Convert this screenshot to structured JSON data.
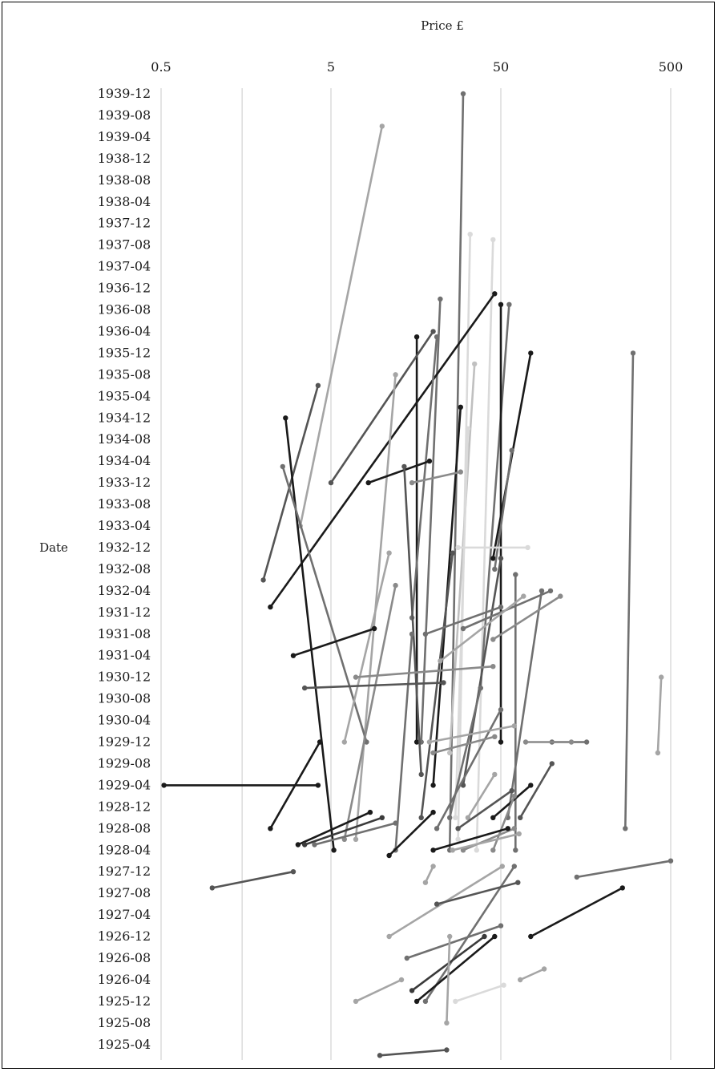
{
  "chart_data": {
    "type": "line",
    "xlabel": "Price £",
    "ylabel": "Date",
    "x_scale": "log",
    "xlim": [
      0.5,
      600
    ],
    "x_ticks": [
      "0.5",
      "5",
      "50",
      "500"
    ],
    "x_gridlines": [
      0.5,
      1.5,
      5,
      50,
      500
    ],
    "y_ticks": [
      "1939-12",
      "1939-08",
      "1939-04",
      "1938-12",
      "1938-08",
      "1938-04",
      "1937-12",
      "1937-08",
      "1937-04",
      "1936-12",
      "1936-08",
      "1936-04",
      "1935-12",
      "1935-08",
      "1935-04",
      "1934-12",
      "1934-08",
      "1934-04",
      "1933-12",
      "1933-08",
      "1933-04",
      "1932-12",
      "1932-08",
      "1932-04",
      "1931-12",
      "1931-08",
      "1931-04",
      "1930-12",
      "1930-08",
      "1930-04",
      "1929-12",
      "1929-08",
      "1929-04",
      "1928-12",
      "1928-08",
      "1928-04",
      "1927-12",
      "1927-08",
      "1927-04",
      "1926-12",
      "1926-08",
      "1926-04",
      "1925-12",
      "1925-08",
      "1925-04"
    ],
    "ylim": [
      "1925-02",
      "1939-12"
    ],
    "grid": "vertical",
    "legend": "none",
    "colors": [
      "#1a1a1a",
      "#3a3a3a",
      "#555555",
      "#707070",
      "#8a8a8a",
      "#a5a5a5",
      "#c0c0c0",
      "#dadada"
    ],
    "series": [
      {
        "points": [
          [
            "1939-12",
            30
          ],
          [
            "1928-04",
            25
          ]
        ],
        "color": "#707070"
      },
      {
        "points": [
          [
            "1939-06",
            10
          ],
          [
            "1933-04",
            3.3
          ]
        ],
        "color": "#a5a5a5"
      },
      {
        "points": [
          [
            "1937-10",
            33
          ],
          [
            "1928-06",
            28
          ]
        ],
        "color": "#dadada"
      },
      {
        "points": [
          [
            "1937-09",
            45
          ],
          [
            "1928-04",
            36
          ]
        ],
        "color": "#dadada"
      },
      {
        "points": [
          [
            "1936-10",
            22
          ],
          [
            "1929-12",
            17
          ]
        ],
        "color": "#707070"
      },
      {
        "points": [
          [
            "1936-11",
            46
          ],
          [
            "1932-01",
            2.2
          ]
        ],
        "color": "#1a1a1a"
      },
      {
        "points": [
          [
            "1936-09",
            56
          ],
          [
            "1930-10",
            38
          ]
        ],
        "color": "#707070"
      },
      {
        "points": [
          [
            "1936-09",
            50
          ],
          [
            "1929-12",
            50
          ]
        ],
        "color": "#1a1a1a"
      },
      {
        "points": [
          [
            "1936-03",
            16
          ],
          [
            "1929-12",
            16
          ]
        ],
        "color": "#1a1a1a"
      },
      {
        "points": [
          [
            "1936-04",
            20
          ],
          [
            "1933-12",
            5
          ]
        ],
        "color": "#555555"
      },
      {
        "points": [
          [
            "1936-03",
            21
          ],
          [
            "1931-11",
            15
          ]
        ],
        "color": "#707070"
      },
      {
        "points": [
          [
            "1935-12",
            75
          ],
          [
            "1932-10",
            45
          ]
        ],
        "color": "#1a1a1a"
      },
      {
        "points": [
          [
            "1935-12",
            300
          ],
          [
            "1928-08",
            270
          ]
        ],
        "color": "#707070"
      },
      {
        "points": [
          [
            "1935-10",
            35
          ],
          [
            "1929-10",
            25
          ]
        ],
        "color": "#c0c0c0"
      },
      {
        "points": [
          [
            "1935-08",
            12
          ],
          [
            "1928-06",
            7
          ]
        ],
        "color": "#a5a5a5"
      },
      {
        "points": [
          [
            "1935-06",
            4.2
          ],
          [
            "1932-06",
            2
          ]
        ],
        "color": "#555555"
      },
      {
        "points": [
          [
            "1935-02",
            29
          ],
          [
            "1929-04",
            20
          ]
        ],
        "color": "#1a1a1a"
      },
      {
        "points": [
          [
            "1934-12",
            2.7
          ],
          [
            "1928-04",
            5.2
          ]
        ],
        "color": "#1a1a1a"
      },
      {
        "points": [
          [
            "1934-10",
            32
          ],
          [
            "1928-10",
            27
          ]
        ],
        "color": "#dadada"
      },
      {
        "points": [
          [
            "1934-06",
            58
          ],
          [
            "1932-08",
            46
          ]
        ],
        "color": "#707070"
      },
      {
        "points": [
          [
            "1934-04",
            19
          ],
          [
            "1933-12",
            8.3
          ]
        ],
        "color": "#1a1a1a"
      },
      {
        "points": [
          [
            "1934-03",
            2.6
          ],
          [
            "1929-12",
            8.1
          ]
        ],
        "color": "#707070"
      },
      {
        "points": [
          [
            "1934-03",
            13.5
          ],
          [
            "1929-06",
            17
          ]
        ],
        "color": "#555555"
      },
      {
        "points": [
          [
            "1934-02",
            29
          ],
          [
            "1933-12",
            15
          ]
        ],
        "color": "#8a8a8a"
      },
      {
        "points": [
          [
            "1932-12",
            72
          ],
          [
            "1932-12",
            28
          ]
        ],
        "color": "#dadada"
      },
      {
        "points": [
          [
            "1932-11",
            26
          ],
          [
            "1928-10",
            17
          ]
        ],
        "color": "#555555"
      },
      {
        "points": [
          [
            "1932-11",
            11
          ],
          [
            "1929-12",
            6
          ]
        ],
        "color": "#a5a5a5"
      },
      {
        "points": [
          [
            "1932-10",
            50
          ],
          [
            "1929-04",
            30
          ]
        ],
        "color": "#555555"
      },
      {
        "points": [
          [
            "1932-07",
            61
          ],
          [
            "1928-04",
            61
          ]
        ],
        "color": "#707070"
      },
      {
        "points": [
          [
            "1932-05",
            12
          ],
          [
            "1928-06",
            6
          ]
        ],
        "color": "#8a8a8a"
      },
      {
        "points": [
          [
            "1932-04",
            98
          ],
          [
            "1931-09",
            30
          ]
        ],
        "color": "#707070"
      },
      {
        "points": [
          [
            "1932-04",
            87
          ],
          [
            "1928-10",
            55
          ]
        ],
        "color": "#707070"
      },
      {
        "points": [
          [
            "1932-03",
            112
          ],
          [
            "1931-07",
            45
          ]
        ],
        "color": "#8a8a8a"
      },
      {
        "points": [
          [
            "1932-03",
            68
          ],
          [
            "1931-03",
            22
          ]
        ],
        "color": "#a5a5a5"
      },
      {
        "points": [
          [
            "1932-01",
            50
          ],
          [
            "1931-08",
            18
          ]
        ],
        "color": "#707070"
      },
      {
        "points": [
          [
            "1931-09",
            9
          ],
          [
            "1931-04",
            3
          ]
        ],
        "color": "#1a1a1a"
      },
      {
        "points": [
          [
            "1931-08",
            15
          ],
          [
            "1928-04",
            12
          ]
        ],
        "color": "#707070"
      },
      {
        "points": [
          [
            "1931-02",
            45
          ],
          [
            "1930-12",
            7
          ]
        ],
        "color": "#8a8a8a"
      },
      {
        "points": [
          [
            "1930-12",
            440
          ],
          [
            "1929-10",
            420
          ]
        ],
        "color": "#a5a5a5"
      },
      {
        "points": [
          [
            "1930-11",
            23
          ],
          [
            "1930-10",
            3.5
          ]
        ],
        "color": "#555555"
      },
      {
        "points": [
          [
            "1930-10",
            38
          ],
          [
            "1928-10",
            25
          ]
        ],
        "color": "#707070"
      },
      {
        "points": [
          [
            "1930-06",
            50
          ],
          [
            "1928-08",
            21
          ]
        ],
        "color": "#707070"
      },
      {
        "points": [
          [
            "1930-03",
            60
          ],
          [
            "1929-12",
            19
          ]
        ],
        "color": "#a5a5a5"
      },
      {
        "points": [
          [
            "1930-01",
            46
          ],
          [
            "1929-10",
            20
          ]
        ],
        "color": "#8a8a8a"
      },
      {
        "points": [
          [
            "1929-12",
            160
          ],
          [
            "1929-12",
            100
          ]
        ],
        "color": "#707070"
      },
      {
        "points": [
          [
            "1929-12",
            130
          ],
          [
            "1929-12",
            70
          ]
        ],
        "color": "#8a8a8a"
      },
      {
        "points": [
          [
            "1929-12",
            4.3
          ],
          [
            "1928-08",
            2.2
          ]
        ],
        "color": "#1a1a1a"
      },
      {
        "points": [
          [
            "1929-08",
            100
          ],
          [
            "1928-10",
            65
          ]
        ],
        "color": "#555555"
      },
      {
        "points": [
          [
            "1929-06",
            46
          ],
          [
            "1928-10",
            32
          ]
        ],
        "color": "#a5a5a5"
      },
      {
        "points": [
          [
            "1929-04",
            4.2
          ],
          [
            "1929-04",
            0.52
          ]
        ],
        "color": "#1a1a1a"
      },
      {
        "points": [
          [
            "1929-04",
            75
          ],
          [
            "1928-10",
            45
          ]
        ],
        "color": "#1a1a1a"
      },
      {
        "points": [
          [
            "1929-03",
            58
          ],
          [
            "1928-08",
            28
          ]
        ],
        "color": "#555555"
      },
      {
        "points": [
          [
            "1929-02",
            60
          ],
          [
            "1928-04",
            45
          ]
        ],
        "color": "#8a8a8a"
      },
      {
        "points": [
          [
            "1928-11",
            8.5
          ],
          [
            "1928-05",
            3.2
          ]
        ],
        "color": "#1a1a1a"
      },
      {
        "points": [
          [
            "1928-10",
            10
          ],
          [
            "1928-05",
            3.5
          ]
        ],
        "color": "#3a3a3a"
      },
      {
        "points": [
          [
            "1928-09",
            12
          ],
          [
            "1928-05",
            4
          ]
        ],
        "color": "#707070"
      },
      {
        "points": [
          [
            "1928-08",
            60
          ],
          [
            "1928-04",
            30
          ]
        ],
        "color": "#8a8a8a"
      },
      {
        "points": [
          [
            "1928-08",
            55
          ],
          [
            "1928-04",
            20
          ]
        ],
        "color": "#1a1a1a"
      },
      {
        "points": [
          [
            "1928-07",
            64
          ],
          [
            "1928-04",
            26
          ]
        ],
        "color": "#a5a5a5"
      },
      {
        "points": [
          [
            "1928-11",
            20
          ],
          [
            "1928-03",
            11
          ]
        ],
        "color": "#1a1a1a"
      },
      {
        "points": [
          [
            "1928-02",
            500
          ],
          [
            "1927-11",
            140
          ]
        ],
        "color": "#707070"
      },
      {
        "points": [
          [
            "1927-12",
            3
          ],
          [
            "1927-09",
            1
          ]
        ],
        "color": "#555555"
      },
      {
        "points": [
          [
            "1928-01",
            51
          ],
          [
            "1926-12",
            11
          ]
        ],
        "color": "#a5a5a5"
      },
      {
        "points": [
          [
            "1928-01",
            20
          ],
          [
            "1927-10",
            18
          ]
        ],
        "color": "#a5a5a5"
      },
      {
        "points": [
          [
            "1928-01",
            60
          ],
          [
            "1925-12",
            18
          ]
        ],
        "color": "#707070"
      },
      {
        "points": [
          [
            "1927-10",
            63
          ],
          [
            "1927-06",
            21
          ]
        ],
        "color": "#555555"
      },
      {
        "points": [
          [
            "1927-09",
            260
          ],
          [
            "1926-12",
            75
          ]
        ],
        "color": "#1a1a1a"
      },
      {
        "points": [
          [
            "1927-02",
            50
          ],
          [
            "1926-08",
            14
          ]
        ],
        "color": "#707070"
      },
      {
        "points": [
          [
            "1926-12",
            46
          ],
          [
            "1925-12",
            16
          ]
        ],
        "color": "#1a1a1a"
      },
      {
        "points": [
          [
            "1926-12",
            40
          ],
          [
            "1926-02",
            15
          ]
        ],
        "color": "#3a3a3a"
      },
      {
        "points": [
          [
            "1926-06",
            90
          ],
          [
            "1926-04",
            65
          ]
        ],
        "color": "#a5a5a5"
      },
      {
        "points": [
          [
            "1926-04",
            13
          ],
          [
            "1925-12",
            7
          ]
        ],
        "color": "#a5a5a5"
      },
      {
        "points": [
          [
            "1926-03",
            52
          ],
          [
            "1925-12",
            27
          ]
        ],
        "color": "#dadada"
      },
      {
        "points": [
          [
            "1926-12",
            25
          ],
          [
            "1925-08",
            24
          ]
        ],
        "color": "#a5a5a5"
      },
      {
        "points": [
          [
            "1925-03",
            24
          ],
          [
            "1925-02",
            9.7
          ]
        ],
        "color": "#555555"
      }
    ]
  }
}
